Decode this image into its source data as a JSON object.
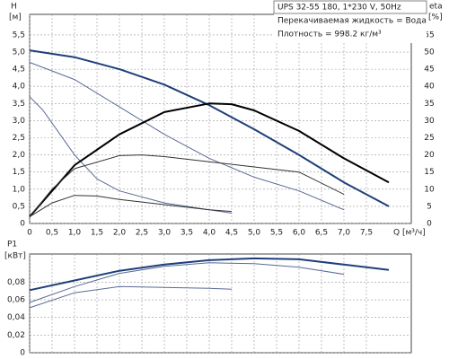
{
  "chart_data": [
    {
      "type": "line",
      "ylabel": "H",
      "yunit": "[м]",
      "y2label": "eta",
      "y2unit": "[%]",
      "xlabel": "Q [м³/ч]",
      "info_box": [
        "UPS 32-55 180, 1*230 V, 50Hz",
        "Перекачиваемая жидкость = Вода",
        "Плотность = 998.2 кг/м³"
      ],
      "grid": true,
      "xlim": [
        0,
        8.5
      ],
      "xticks": [
        0,
        {
          "value": 0.5,
          "label": "0,5"
        },
        {
          "value": 1,
          "label": "1,0"
        },
        {
          "value": 1.5,
          "label": "1,5"
        },
        {
          "value": 2,
          "label": "2,0"
        },
        {
          "value": 2.5,
          "label": "2,5"
        },
        {
          "value": 3,
          "label": "3,0"
        },
        {
          "value": 3.5,
          "label": "3,5"
        },
        {
          "value": 4,
          "label": "4,0"
        },
        {
          "value": 4.5,
          "label": "4,5"
        },
        {
          "value": 5,
          "label": "5,0"
        },
        {
          "value": 5.5,
          "label": "5,5"
        },
        {
          "value": 6,
          "label": "6,0"
        },
        {
          "value": 6.5,
          "label": "6,5"
        },
        {
          "value": 7,
          "label": "7,0"
        },
        {
          "value": 7.5,
          "label": "7,5"
        }
      ],
      "ylim": [
        0,
        6.1
      ],
      "yticks": [
        0,
        {
          "value": 0.5,
          "label": "0,5"
        },
        {
          "value": 1,
          "label": "1,0"
        },
        {
          "value": 1.5,
          "label": "1,5"
        },
        {
          "value": 2,
          "label": "2,0"
        },
        {
          "value": 2.5,
          "label": "2,5"
        },
        {
          "value": 3,
          "label": "3,0"
        },
        {
          "value": 3.5,
          "label": "3,5"
        },
        {
          "value": 4,
          "label": "4,0"
        },
        {
          "value": 4.5,
          "label": "4,5"
        },
        {
          "value": 5,
          "label": "5,0"
        },
        {
          "value": 5.5,
          "label": "5,5"
        }
      ],
      "y2lim": [
        0,
        61
      ],
      "y2ticks": [
        0,
        5,
        10,
        15,
        20,
        25,
        30,
        35,
        40,
        45,
        50,
        55
      ],
      "series": [
        {
          "color": "#1f3f7a",
          "width": 2,
          "x": [
            0,
            1,
            2,
            3,
            4,
            5,
            6,
            7,
            8
          ],
          "values": [
            5.05,
            4.85,
            4.5,
            4.05,
            3.45,
            2.75,
            2.0,
            1.2,
            0.5
          ]
        },
        {
          "color": "#5a6a96",
          "width": 1,
          "x": [
            0,
            1,
            2,
            3,
            4,
            5,
            6,
            7
          ],
          "values": [
            4.7,
            4.2,
            3.4,
            2.6,
            1.9,
            1.35,
            0.95,
            0.4
          ]
        },
        {
          "color": "#5a6a96",
          "width": 1,
          "x": [
            0,
            0.3,
            1,
            1.5,
            2,
            3,
            4,
            4.5
          ],
          "values": [
            3.7,
            3.3,
            2.0,
            1.3,
            0.95,
            0.6,
            0.4,
            0.3
          ]
        },
        {
          "color": "#000000",
          "width": 2,
          "axis": "y2",
          "x": [
            0,
            1,
            2,
            3,
            4,
            4.5,
            5,
            6,
            7,
            8
          ],
          "values": [
            2,
            17,
            26,
            32.5,
            35,
            34.8,
            33,
            27,
            19,
            12
          ]
        },
        {
          "color": "#333333",
          "width": 1,
          "axis": "y2",
          "x": [
            0,
            0.5,
            1,
            2,
            2.5,
            3,
            4,
            5,
            6,
            7
          ],
          "values": [
            2,
            10,
            16,
            19.8,
            20,
            19.5,
            18,
            16.5,
            15,
            8.5
          ]
        },
        {
          "color": "#333333",
          "width": 1,
          "axis": "y2",
          "x": [
            0,
            0.5,
            1,
            1.5,
            2,
            3,
            4,
            4.5
          ],
          "values": [
            2,
            6,
            8.2,
            8,
            7,
            5.5,
            4,
            3.5
          ]
        }
      ]
    },
    {
      "type": "line",
      "ylabel": "P1",
      "yunit": "[кВт]",
      "grid": true,
      "xlim": [
        0,
        8.5
      ],
      "ylim": [
        0,
        0.112
      ],
      "yticks": [
        0,
        {
          "value": 0.02,
          "label": "0,02"
        },
        {
          "value": 0.04,
          "label": "0,04"
        },
        {
          "value": 0.06,
          "label": "0,06"
        },
        {
          "value": 0.08,
          "label": "0,08"
        }
      ],
      "series": [
        {
          "color": "#1f3f7a",
          "width": 2,
          "x": [
            0,
            1,
            2,
            3,
            4,
            5,
            6,
            7,
            8
          ],
          "values": [
            0.071,
            0.082,
            0.093,
            0.1,
            0.105,
            0.107,
            0.106,
            0.1,
            0.094
          ]
        },
        {
          "color": "#5a6a96",
          "width": 1,
          "x": [
            0,
            1,
            2,
            3,
            4,
            5,
            6,
            7
          ],
          "values": [
            0.057,
            0.075,
            0.09,
            0.098,
            0.102,
            0.101,
            0.097,
            0.089
          ]
        },
        {
          "color": "#5a6a96",
          "width": 1,
          "x": [
            0,
            1,
            2,
            3,
            4,
            4.5
          ],
          "values": [
            0.051,
            0.068,
            0.075,
            0.074,
            0.073,
            0.072
          ]
        }
      ]
    }
  ]
}
